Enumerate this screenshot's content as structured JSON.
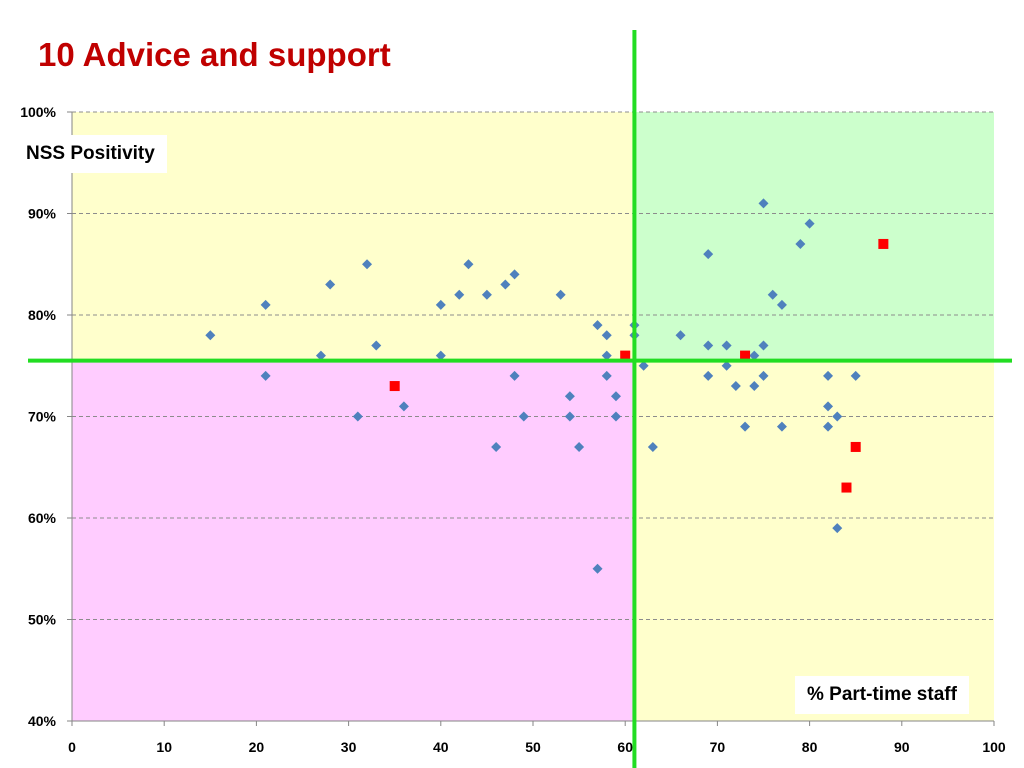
{
  "title": "10 Advice and support",
  "chart_data": {
    "type": "scatter",
    "xlabel": "% Part-time staff",
    "ylabel": "NSS Positivity",
    "xlim": [
      0,
      100
    ],
    "ylim": [
      0.4,
      1.0
    ],
    "x_ticks": [
      0,
      10,
      20,
      30,
      40,
      50,
      60,
      70,
      80,
      90,
      100
    ],
    "y_ticks": [
      {
        "value": 0.4,
        "label": "40%"
      },
      {
        "value": 0.5,
        "label": "50%"
      },
      {
        "value": 0.6,
        "label": "60%"
      },
      {
        "value": 0.7,
        "label": "70%"
      },
      {
        "value": 0.8,
        "label": "80%"
      },
      {
        "value": 0.9,
        "label": "90%"
      },
      {
        "value": 1.0,
        "label": "100%"
      }
    ],
    "grid": "horizontal dashed",
    "quadrant_split": {
      "x": 61,
      "y": 0.755
    },
    "quadrant_colors": {
      "upper_left": "#ffffcc",
      "upper_right": "#ccffcc",
      "lower_left": "#ffccff",
      "lower_right": "#ffffcc"
    },
    "divider_color": "#22dd22",
    "series": [
      {
        "marker": "diamond",
        "color": "#4f81bd",
        "points": [
          [
            15,
            0.78
          ],
          [
            21,
            0.81
          ],
          [
            21,
            0.74
          ],
          [
            27,
            0.76
          ],
          [
            28,
            0.83
          ],
          [
            31,
            0.7
          ],
          [
            32,
            0.85
          ],
          [
            33,
            0.77
          ],
          [
            36,
            0.71
          ],
          [
            40,
            0.81
          ],
          [
            40,
            0.76
          ],
          [
            42,
            0.82
          ],
          [
            43,
            0.85
          ],
          [
            45,
            0.82
          ],
          [
            46,
            0.67
          ],
          [
            47,
            0.83
          ],
          [
            48,
            0.84
          ],
          [
            48,
            0.74
          ],
          [
            49,
            0.7
          ],
          [
            53,
            0.82
          ],
          [
            54,
            0.72
          ],
          [
            54,
            0.7
          ],
          [
            55,
            0.67
          ],
          [
            57,
            0.79
          ],
          [
            57,
            0.55
          ],
          [
            58,
            0.78
          ],
          [
            58,
            0.76
          ],
          [
            58,
            0.74
          ],
          [
            59,
            0.72
          ],
          [
            59,
            0.7
          ],
          [
            61,
            0.79
          ],
          [
            61,
            0.78
          ],
          [
            62,
            0.75
          ],
          [
            63,
            0.67
          ],
          [
            66,
            0.78
          ],
          [
            69,
            0.86
          ],
          [
            69,
            0.77
          ],
          [
            69,
            0.74
          ],
          [
            71,
            0.77
          ],
          [
            71,
            0.75
          ],
          [
            72,
            0.73
          ],
          [
            73,
            0.69
          ],
          [
            74,
            0.76
          ],
          [
            74,
            0.73
          ],
          [
            75,
            0.91
          ],
          [
            75,
            0.77
          ],
          [
            75,
            0.74
          ],
          [
            76,
            0.82
          ],
          [
            77,
            0.81
          ],
          [
            77,
            0.69
          ],
          [
            79,
            0.87
          ],
          [
            80,
            0.89
          ],
          [
            82,
            0.74
          ],
          [
            82,
            0.71
          ],
          [
            82,
            0.69
          ],
          [
            83,
            0.7
          ],
          [
            83,
            0.59
          ],
          [
            85,
            0.74
          ]
        ]
      },
      {
        "marker": "square",
        "color": "#ff0000",
        "points": [
          [
            35,
            0.73
          ],
          [
            60,
            0.76
          ],
          [
            73,
            0.76
          ],
          [
            84,
            0.63
          ],
          [
            85,
            0.67
          ],
          [
            88,
            0.87
          ]
        ]
      }
    ]
  }
}
